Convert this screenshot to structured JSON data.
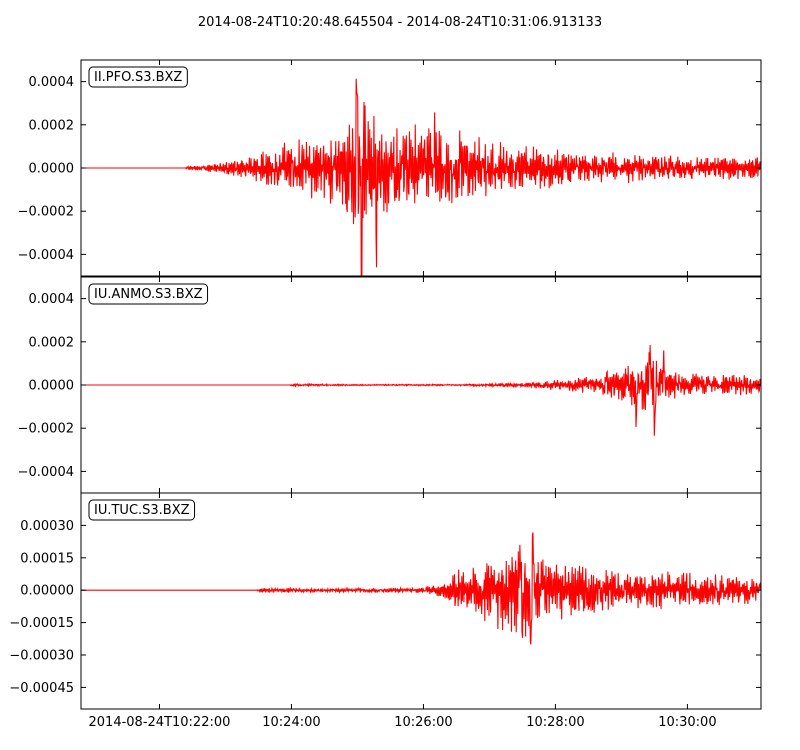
{
  "title": "2014-08-24T10:20:48.645504  -  2014-08-24T10:31:06.913133",
  "colors": {
    "trace": "#ff0000",
    "axes": "#000000",
    "background": "#ffffff"
  },
  "chart_data": {
    "type": "line",
    "title": "2014-08-24T10:20:48.645504  -  2014-08-24T10:31:06.913133",
    "xlabel": "",
    "ylabel": "",
    "grid": false,
    "x_range": [
      "2014-08-24T10:20:48.645504",
      "2014-08-24T10:31:06.913133"
    ],
    "x_tick_labels": [
      "2014-08-24T10:22:00",
      "10:24:00",
      "10:26:00",
      "10:28:00",
      "10:30:00"
    ],
    "x_tick_seconds_after_start": [
      71.35,
      191.35,
      311.35,
      431.35,
      551.35
    ],
    "duration_seconds": 618.27,
    "panels": [
      {
        "label": "II.PFO.S3.BXZ",
        "ylim": [
          -0.0005,
          0.0005
        ],
        "y_ticks": [
          -0.0004,
          -0.0002,
          0.0,
          0.0002,
          0.0004
        ],
        "y_tick_labels": [
          "−0.0004",
          "−0.0002",
          "0.0000",
          "0.0002",
          "0.0004"
        ],
        "envelope": [
          [
            0,
            0.0
          ],
          [
            95,
            0.0
          ],
          [
            96,
            8e-06
          ],
          [
            110,
            1.2e-05
          ],
          [
            125,
            2.5e-05
          ],
          [
            150,
            5e-05
          ],
          [
            185,
            0.00012
          ],
          [
            230,
            0.00017
          ],
          [
            253,
            0.00035
          ],
          [
            254,
            0.00042
          ],
          [
            256,
            0.00045
          ],
          [
            262,
            0.00025
          ],
          [
            300,
            0.00022
          ],
          [
            340,
            0.00018
          ],
          [
            380,
            0.00013
          ],
          [
            450,
            8e-05
          ],
          [
            550,
            6e-05
          ],
          [
            618.27,
            5e-05
          ]
        ],
        "peaks": [
          {
            "t": 251,
            "value": 0.00041
          },
          {
            "t": 254.8,
            "value": -0.00047
          },
          {
            "t": 268.5,
            "value": -0.00031
          },
          {
            "t": 321.5,
            "value": 0.00022
          }
        ]
      },
      {
        "label": "IU.ANMO.S3.BXZ",
        "ylim": [
          -0.0005,
          0.0005
        ],
        "y_ticks": [
          -0.0004,
          -0.0002,
          0.0,
          0.0002,
          0.0004
        ],
        "y_tick_labels": [
          "−0.0004",
          "−0.0002",
          "0.0000",
          "0.0002",
          "0.0004"
        ],
        "envelope": [
          [
            0,
            0.0
          ],
          [
            190,
            0.0
          ],
          [
            191,
            6e-06
          ],
          [
            260,
            3e-06
          ],
          [
            350,
            4e-06
          ],
          [
            400,
            1.2e-05
          ],
          [
            440,
            2.8e-05
          ],
          [
            470,
            4.5e-05
          ],
          [
            490,
            8e-05
          ],
          [
            510,
            0.00012
          ],
          [
            520,
            0.00014
          ],
          [
            545,
            6e-05
          ],
          [
            618.27,
            4.5e-05
          ]
        ],
        "peaks": [
          {
            "t": 478,
            "value": 4e-05
          },
          {
            "t": 505,
            "value": -0.00012
          },
          {
            "t": 517,
            "value": 0.00021
          },
          {
            "t": 521.6,
            "value": -0.00026
          },
          {
            "t": 530,
            "value": 0.00011
          }
        ]
      },
      {
        "label": "IU.TUC.S3.BXZ",
        "ylim": [
          -0.00055,
          0.00045
        ],
        "y_ticks": [
          -0.00045,
          -0.0003,
          -0.00015,
          0.0,
          0.00015,
          0.0003
        ],
        "y_tick_labels": [
          "−0.00045",
          "−0.00030",
          "−0.00015",
          "0.00000",
          "0.00015",
          "0.00030"
        ],
        "envelope": [
          [
            0,
            0.0
          ],
          [
            160,
            0.0
          ],
          [
            162,
            1.2e-05
          ],
          [
            200,
            8e-06
          ],
          [
            300,
            1.2e-05
          ],
          [
            318,
            2e-05
          ],
          [
            330,
            4e-05
          ],
          [
            345,
            0.00011
          ],
          [
            370,
            0.00015
          ],
          [
            385,
            0.00022
          ],
          [
            405,
            0.00025
          ],
          [
            420,
            0.00016
          ],
          [
            480,
            0.0001
          ],
          [
            540,
            9e-05
          ],
          [
            618.27,
            6e-05
          ]
        ],
        "peaks": [
          {
            "t": 399.5,
            "value": 0.00025
          },
          {
            "t": 401.2,
            "value": -0.00017
          },
          {
            "t": 410.8,
            "value": 0.00029
          },
          {
            "t": 409,
            "value": -0.00033
          }
        ]
      }
    ]
  }
}
